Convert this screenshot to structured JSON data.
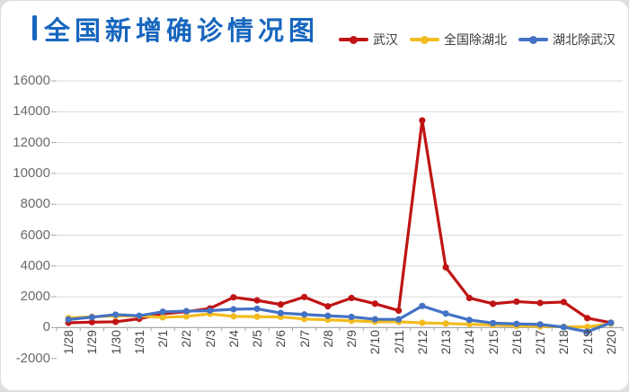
{
  "page": {
    "background": "#dedede",
    "card_background": "#ffffff"
  },
  "header": {
    "title": "全国新增确诊情况图",
    "title_color": "#1766be",
    "accent_bar_color": "#1766be"
  },
  "axis_colors": {
    "gridline": "#dadada",
    "axis_line": "#a8a8a8",
    "ytick_label": "#6b6b6b",
    "xtick_label": "#474747"
  },
  "chart_data": {
    "type": "line",
    "title": "全国新增确诊情况图",
    "categories": [
      "1/28",
      "1/29",
      "1/30",
      "1/31",
      "2/1",
      "2/2",
      "2/3",
      "2/4",
      "2/5",
      "2/6",
      "2/7",
      "2/8",
      "2/9",
      "2/10",
      "2/11",
      "2/12",
      "2/13",
      "2/14",
      "2/15",
      "2/16",
      "2/17",
      "2/18",
      "2/19",
      "2/20"
    ],
    "series": [
      {
        "name": "武汉",
        "color": "#c01414",
        "values": [
          315,
          356,
          378,
          576,
          894,
          1033,
          1242,
          1967,
          1766,
          1501,
          1985,
          1379,
          1921,
          1552,
          1104,
          13436,
          3910,
          1923,
          1548,
          1690,
          1600,
          1660,
          615,
          319
        ]
      },
      {
        "name": "全国除湖北",
        "color": "#f2bc1e",
        "values": [
          619,
          705,
          762,
          755,
          669,
          726,
          890,
          731,
          707,
          696,
          558,
          509,
          444,
          381,
          377,
          312,
          267,
          221,
          166,
          115,
          79,
          56,
          45,
          258
        ]
      },
      {
        "name": "湖北除武汉",
        "color": "#4472c4",
        "values": [
          525,
          676,
          842,
          771,
          1027,
          1070,
          1103,
          1189,
          1221,
          946,
          856,
          768,
          697,
          545,
          534,
          1404,
          913,
          497,
          295,
          243,
          207,
          33,
          -266,
          312
        ]
      }
    ],
    "xlabel": "",
    "ylabel": "",
    "ylim": [
      -2000,
      16000
    ],
    "ytick_step": 2000,
    "yticks": [
      16000,
      14000,
      12000,
      10000,
      8000,
      6000,
      4000,
      2000,
      0,
      -2000
    ],
    "grid": true,
    "legend_position": "top-right",
    "marker": "circle"
  }
}
